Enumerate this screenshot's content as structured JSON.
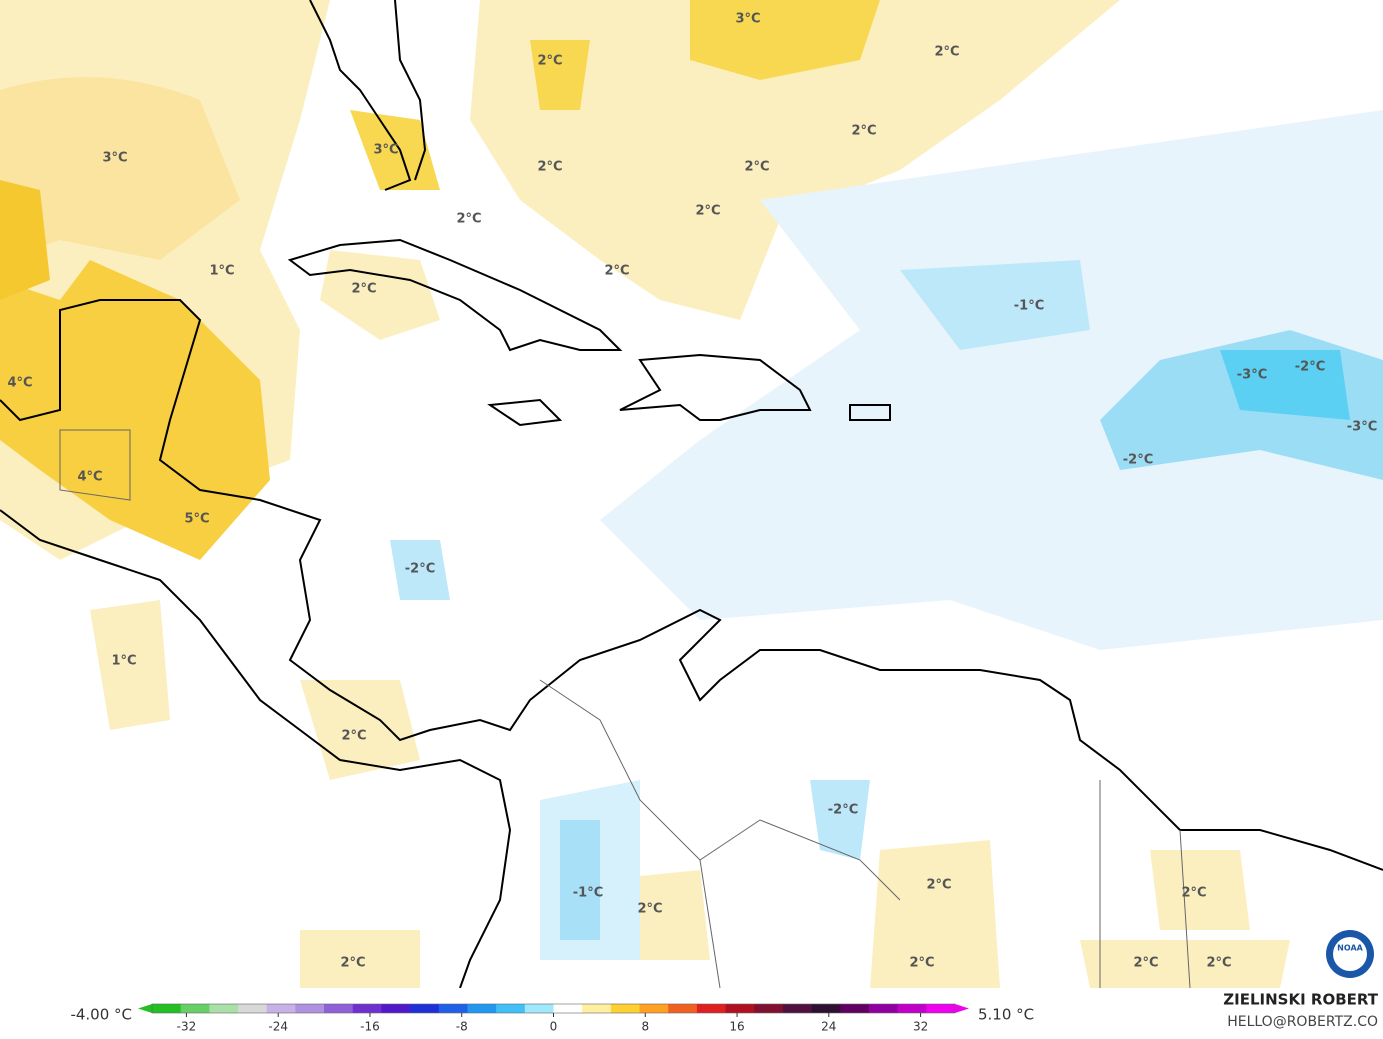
{
  "map": {
    "labels": [
      "3°C",
      "2°C",
      "2°C",
      "3°C",
      "3°C",
      "2°C",
      "2°C",
      "2°C",
      "2°C",
      "2°C",
      "1°C",
      "2°C",
      "2°C",
      "-1°C",
      "4°C",
      "-3°C",
      "-2°C",
      "-3°C",
      "-2°C",
      "4°C",
      "5°C",
      "-2°C",
      "1°C",
      "2°C",
      "-2°C",
      "-1°C",
      "2°C",
      "2°C",
      "2°C",
      "2°C",
      "2°C",
      "2°C",
      "2°C"
    ],
    "logo": "NOAA"
  },
  "colorbar": {
    "min_label": "-4.00 °C",
    "max_label": "5.10 °C",
    "lim": [
      -35,
      35
    ],
    "ticks": [
      -32,
      -24,
      -16,
      -8,
      0,
      8,
      16,
      24,
      32
    ],
    "colors": [
      "#22c022",
      "#66d066",
      "#a8e0a8",
      "#d8d8d8",
      "#c8b0e8",
      "#b090e0",
      "#9060d8",
      "#7030d0",
      "#5018c8",
      "#2030d8",
      "#2060e8",
      "#2098f0",
      "#40c0f8",
      "#a0e8fc",
      "#ffffff",
      "#fff0a0",
      "#ffd030",
      "#ffa020",
      "#f06020",
      "#e02020",
      "#b01020",
      "#801030",
      "#501040",
      "#301030",
      "#600060",
      "#9000a0",
      "#c000c8",
      "#f000f0"
    ]
  },
  "footer": {
    "author": "ZIELINSKI ROBERT",
    "email": "HELLO@ROBERTZ.CO"
  }
}
